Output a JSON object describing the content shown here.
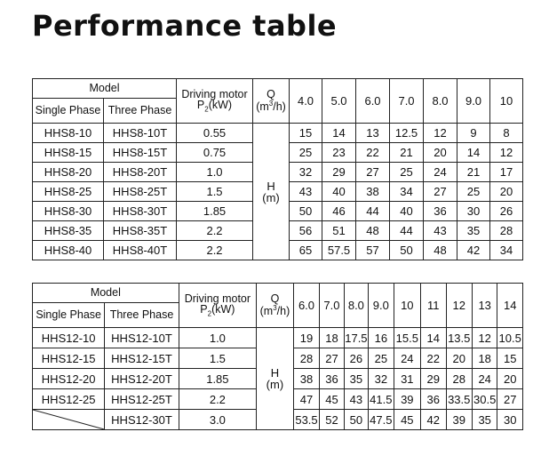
{
  "title": "Performance table",
  "headers": {
    "model": "Model",
    "single_phase": "Single Phase",
    "three_phase": "Three Phase",
    "motor_line1": "Driving motor",
    "motor_p": "P",
    "motor_sub": "2",
    "motor_unit": "(kW)",
    "q_label": "Q",
    "q_unit_pre": "(m",
    "q_unit_sup": "3",
    "q_unit_post": "/h)",
    "h_label": "H",
    "h_unit": "(m)"
  },
  "table1": {
    "flows": [
      "4.0",
      "5.0",
      "6.0",
      "7.0",
      "8.0",
      "9.0",
      "10"
    ],
    "rows": [
      {
        "single": "HHS8-10",
        "three": "HHS8-10T",
        "power": "0.55",
        "heads": [
          "15",
          "14",
          "13",
          "12.5",
          "12",
          "9",
          "8"
        ]
      },
      {
        "single": "HHS8-15",
        "three": "HHS8-15T",
        "power": "0.75",
        "heads": [
          "25",
          "23",
          "22",
          "21",
          "20",
          "14",
          "12"
        ]
      },
      {
        "single": "HHS8-20",
        "three": "HHS8-20T",
        "power": "1.0",
        "heads": [
          "32",
          "29",
          "27",
          "25",
          "24",
          "21",
          "17"
        ]
      },
      {
        "single": "HHS8-25",
        "three": "HHS8-25T",
        "power": "1.5",
        "heads": [
          "43",
          "40",
          "38",
          "34",
          "27",
          "25",
          "20"
        ]
      },
      {
        "single": "HHS8-30",
        "three": "HHS8-30T",
        "power": "1.85",
        "heads": [
          "50",
          "46",
          "44",
          "40",
          "36",
          "30",
          "26"
        ]
      },
      {
        "single": "HHS8-35",
        "three": "HHS8-35T",
        "power": "2.2",
        "heads": [
          "56",
          "51",
          "48",
          "44",
          "43",
          "35",
          "28"
        ]
      },
      {
        "single": "HHS8-40",
        "three": "HHS8-40T",
        "power": "2.2",
        "heads": [
          "65",
          "57.5",
          "57",
          "50",
          "48",
          "42",
          "34"
        ]
      }
    ]
  },
  "table2": {
    "flows": [
      "6.0",
      "7.0",
      "8.0",
      "9.0",
      "10",
      "11",
      "12",
      "13",
      "14"
    ],
    "rows": [
      {
        "single": "HHS12-10",
        "three": "HHS12-10T",
        "power": "1.0",
        "heads": [
          "19",
          "18",
          "17.5",
          "16",
          "15.5",
          "14",
          "13.5",
          "12",
          "10.5"
        ]
      },
      {
        "single": "HHS12-15",
        "three": "HHS12-15T",
        "power": "1.5",
        "heads": [
          "28",
          "27",
          "26",
          "25",
          "24",
          "22",
          "20",
          "18",
          "15"
        ]
      },
      {
        "single": "HHS12-20",
        "three": "HHS12-20T",
        "power": "1.85",
        "heads": [
          "38",
          "36",
          "35",
          "32",
          "31",
          "29",
          "28",
          "24",
          "20"
        ]
      },
      {
        "single": "HHS12-25",
        "three": "HHS12-25T",
        "power": "2.2",
        "heads": [
          "47",
          "45",
          "43",
          "41.5",
          "39",
          "36",
          "33.5",
          "30.5",
          "27"
        ]
      },
      {
        "single": "",
        "three": "HHS12-30T",
        "power": "3.0",
        "heads": [
          "53.5",
          "52",
          "50",
          "47.5",
          "45",
          "42",
          "39",
          "35",
          "30"
        ]
      }
    ]
  }
}
